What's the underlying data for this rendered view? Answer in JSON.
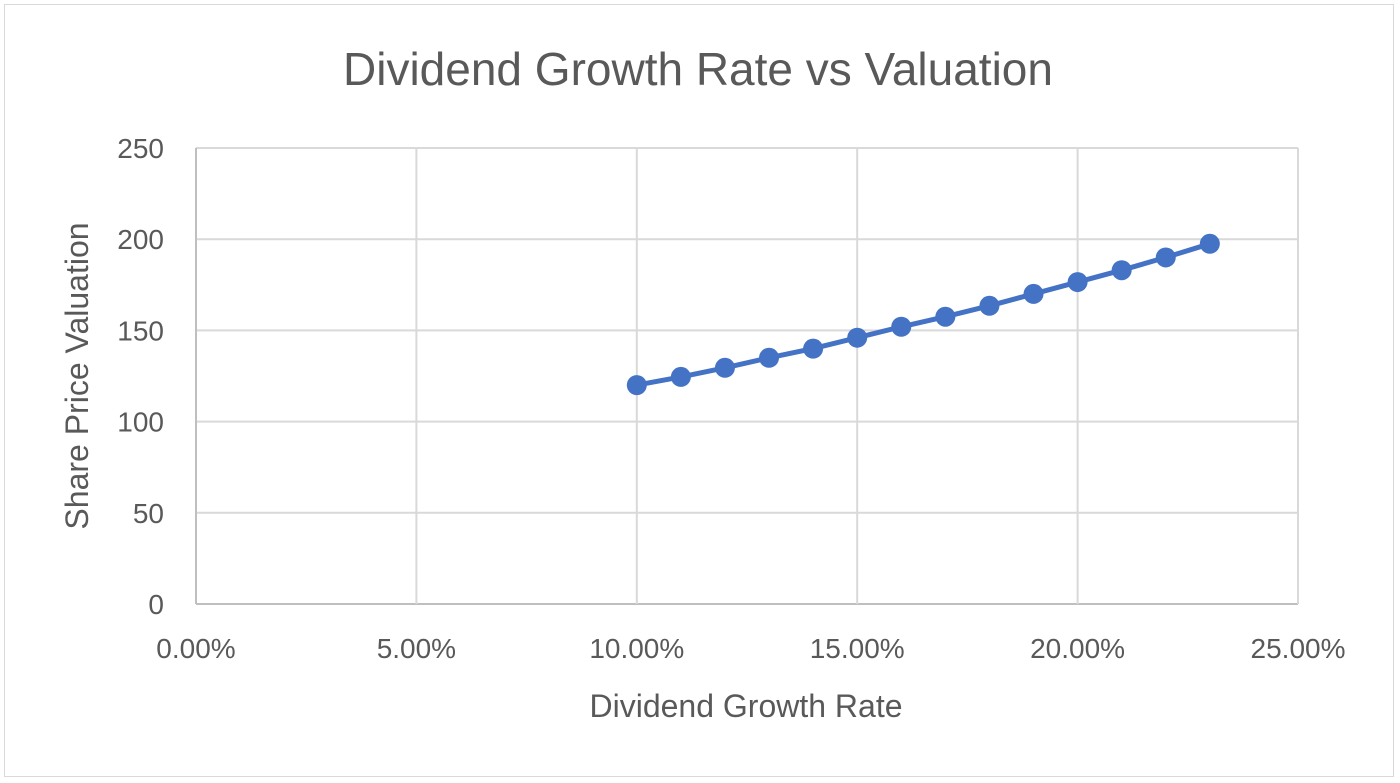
{
  "chart_data": {
    "type": "line",
    "title": "Dividend Growth Rate vs Valuation",
    "xlabel": "Dividend Growth Rate",
    "ylabel": "Share Price Valuation",
    "x_ticks": [
      "0.00%",
      "5.00%",
      "10.00%",
      "15.00%",
      "20.00%",
      "25.00%"
    ],
    "y_ticks": [
      "0",
      "50",
      "100",
      "150",
      "200",
      "250"
    ],
    "xlim": [
      0,
      0.25
    ],
    "ylim": [
      0,
      250
    ],
    "grid": true,
    "legend": "none",
    "series": [
      {
        "color": "#4472c4",
        "x": [
          0.1,
          0.11,
          0.12,
          0.13,
          0.14,
          0.15,
          0.16,
          0.17,
          0.18,
          0.19,
          0.2,
          0.21,
          0.22,
          0.23
        ],
        "y": [
          120,
          124.5,
          129.5,
          135,
          140,
          146,
          152,
          157.5,
          163.5,
          170,
          176.5,
          183,
          190,
          197.5
        ]
      }
    ]
  }
}
